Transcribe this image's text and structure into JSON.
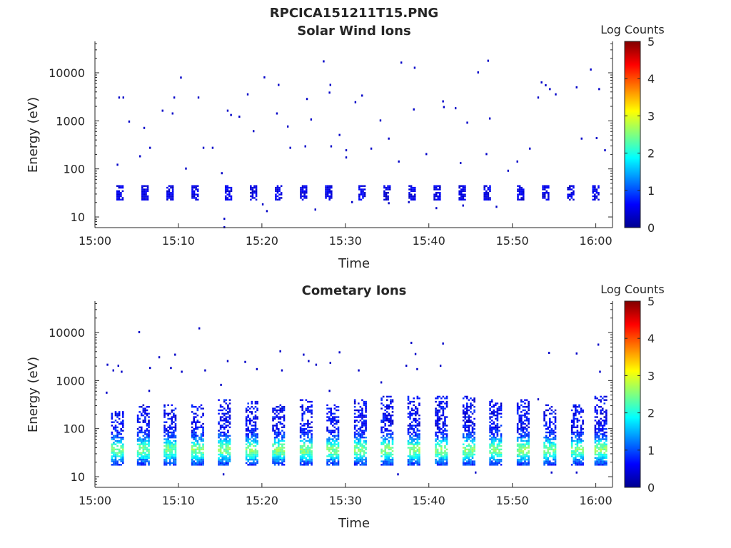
{
  "figure": {
    "title": "RPCICA151211T15.PNG"
  },
  "colorbar": {
    "label": "Log Counts",
    "min": 0,
    "max": 5,
    "ticks": [
      "0",
      "1",
      "2",
      "3",
      "4",
      "5"
    ],
    "colormap": "jet"
  },
  "chart_data": [
    {
      "type": "heatmap",
      "title": "Solar Wind Ions",
      "xlabel": "Time",
      "ylabel": "Energy (eV)",
      "xlim": [
        "15:00",
        "16:02"
      ],
      "ylim": [
        6,
        45000
      ],
      "yscale": "log",
      "xticks": [
        "15:00",
        "15:10",
        "15:20",
        "15:30",
        "15:40",
        "15:50",
        "16:00"
      ],
      "yticks": [
        "10",
        "100",
        "1000",
        "10000"
      ],
      "grid": false,
      "colorbar_label": "Log Counts",
      "bursts": [
        {
          "t": "15:03",
          "emin": 22,
          "emax": 45,
          "level": 0.3
        },
        {
          "t": "15:06",
          "emin": 22,
          "emax": 45,
          "level": 0.3
        },
        {
          "t": "15:09",
          "emin": 22,
          "emax": 45,
          "level": 0.3
        },
        {
          "t": "15:12",
          "emin": 22,
          "emax": 45,
          "level": 0.3
        },
        {
          "t": "15:16",
          "emin": 22,
          "emax": 45,
          "level": 0.3
        },
        {
          "t": "15:19",
          "emin": 22,
          "emax": 45,
          "level": 0.3
        },
        {
          "t": "15:22",
          "emin": 22,
          "emax": 45,
          "level": 0.3
        },
        {
          "t": "15:25",
          "emin": 22,
          "emax": 45,
          "level": 0.3
        },
        {
          "t": "15:28",
          "emin": 22,
          "emax": 45,
          "level": 0.3
        },
        {
          "t": "15:32",
          "emin": 22,
          "emax": 45,
          "level": 0.3
        },
        {
          "t": "15:35",
          "emin": 22,
          "emax": 45,
          "level": 0.3
        },
        {
          "t": "15:38",
          "emin": 22,
          "emax": 45,
          "level": 0.3
        },
        {
          "t": "15:41",
          "emin": 22,
          "emax": 45,
          "level": 0.3
        },
        {
          "t": "15:44",
          "emin": 22,
          "emax": 45,
          "level": 0.3
        },
        {
          "t": "15:47",
          "emin": 22,
          "emax": 45,
          "level": 0.3
        },
        {
          "t": "15:51",
          "emin": 22,
          "emax": 45,
          "level": 0.3
        },
        {
          "t": "15:54",
          "emin": 22,
          "emax": 45,
          "level": 0.3
        },
        {
          "t": "15:57",
          "emin": 22,
          "emax": 45,
          "level": 0.3
        },
        {
          "t": "16:00",
          "emin": 22,
          "emax": 45,
          "level": 0.3
        }
      ],
      "points": [
        {
          "t": "15:02.8",
          "e": 3000
        },
        {
          "t": "15:03.3",
          "e": 3000
        },
        {
          "t": "15:04.0",
          "e": 950
        },
        {
          "t": "15:05.8",
          "e": 700
        },
        {
          "t": "15:06.5",
          "e": 270
        },
        {
          "t": "15:08.0",
          "e": 1600
        },
        {
          "t": "15:09.2",
          "e": 1400
        },
        {
          "t": "15:09.4",
          "e": 3000
        },
        {
          "t": "15:10.2",
          "e": 7800
        },
        {
          "t": "15:10.8",
          "e": 100
        },
        {
          "t": "15:12.3",
          "e": 3000
        },
        {
          "t": "15:12.9",
          "e": 270
        },
        {
          "t": "15:15.8",
          "e": 1600
        },
        {
          "t": "15:16.2",
          "e": 1300
        },
        {
          "t": "15:17.2",
          "e": 1200
        },
        {
          "t": "15:18.2",
          "e": 3500
        },
        {
          "t": "15:18.9",
          "e": 600
        },
        {
          "t": "15:20.2",
          "e": 7900
        },
        {
          "t": "15:21.9",
          "e": 5500
        },
        {
          "t": "15:21.7",
          "e": 1400
        },
        {
          "t": "15:23.0",
          "e": 750
        },
        {
          "t": "15:23.3",
          "e": 270
        },
        {
          "t": "15:25.1",
          "e": 290
        },
        {
          "t": "15:25.3",
          "e": 2800
        },
        {
          "t": "15:25.8",
          "e": 1050
        },
        {
          "t": "15:27.3",
          "e": 17000
        },
        {
          "t": "15:28.0",
          "e": 3800
        },
        {
          "t": "15:28.1",
          "e": 5500
        },
        {
          "t": "15:28.2",
          "e": 290
        },
        {
          "t": "15:29.2",
          "e": 500
        },
        {
          "t": "15:31.1",
          "e": 2400
        },
        {
          "t": "15:31.9",
          "e": 3300
        },
        {
          "t": "15:34.1",
          "e": 1000
        },
        {
          "t": "15:35.1",
          "e": 420
        },
        {
          "t": "15:36.6",
          "e": 16000
        },
        {
          "t": "15:38.2",
          "e": 12500
        },
        {
          "t": "15:38.1",
          "e": 1700
        },
        {
          "t": "15:41.6",
          "e": 2500
        },
        {
          "t": "15:41.7",
          "e": 1900
        },
        {
          "t": "15:43.1",
          "e": 1800
        },
        {
          "t": "15:44.5",
          "e": 900
        },
        {
          "t": "15:45.8",
          "e": 10000
        },
        {
          "t": "15:47.0",
          "e": 17500
        },
        {
          "t": "15:47.2",
          "e": 1100
        },
        {
          "t": "15:49.4",
          "e": 90
        },
        {
          "t": "15:53.0",
          "e": 3000
        },
        {
          "t": "15:53.4",
          "e": 6200
        },
        {
          "t": "15:53.9",
          "e": 5400
        },
        {
          "t": "15:54.4",
          "e": 4500
        },
        {
          "t": "15:55.1",
          "e": 3500
        },
        {
          "t": "15:57.6",
          "e": 4900
        },
        {
          "t": "15:59.3",
          "e": 11500
        },
        {
          "t": "16:00.3",
          "e": 4500
        },
        {
          "t": "15:58.2",
          "e": 420
        },
        {
          "t": "16:00.0",
          "e": 430
        },
        {
          "t": "16:01.0",
          "e": 240
        },
        {
          "t": "15:02.6",
          "e": 120
        },
        {
          "t": "15:05.3",
          "e": 180
        },
        {
          "t": "15:14.0",
          "e": 270
        },
        {
          "t": "15:15.1",
          "e": 80
        },
        {
          "t": "15:30.0",
          "e": 170
        },
        {
          "t": "15:30.0",
          "e": 240
        },
        {
          "t": "15:33.0",
          "e": 260
        },
        {
          "t": "15:36.3",
          "e": 140
        },
        {
          "t": "15:39.6",
          "e": 200
        },
        {
          "t": "15:43.7",
          "e": 130
        },
        {
          "t": "15:46.8",
          "e": 200
        },
        {
          "t": "15:50.5",
          "e": 140
        },
        {
          "t": "15:52.0",
          "e": 260
        },
        {
          "t": "15:15.4",
          "e": 6
        },
        {
          "t": "15:15.4",
          "e": 9
        },
        {
          "t": "15:20.0",
          "e": 18
        },
        {
          "t": "15:20.5",
          "e": 13
        },
        {
          "t": "15:26.3",
          "e": 14
        },
        {
          "t": "15:30.7",
          "e": 20
        },
        {
          "t": "15:35.1",
          "e": 19
        },
        {
          "t": "15:37.5",
          "e": 20
        },
        {
          "t": "15:40.8",
          "e": 15
        },
        {
          "t": "15:44.0",
          "e": 17
        },
        {
          "t": "15:48.0",
          "e": 16
        }
      ]
    },
    {
      "type": "heatmap",
      "title": "Cometary Ions",
      "xlabel": "Time",
      "ylabel": "Energy (eV)",
      "xlim": [
        "15:00",
        "16:02"
      ],
      "ylim": [
        6,
        45000
      ],
      "yscale": "log",
      "xticks": [
        "15:00",
        "15:10",
        "15:20",
        "15:30",
        "15:40",
        "15:50",
        "16:00"
      ],
      "yticks": [
        "10",
        "100",
        "1000",
        "10000"
      ],
      "grid": false,
      "colorbar_label": "Log Counts",
      "bursts": [
        {
          "t": "15:02.7",
          "emin": 17,
          "emax": 220,
          "peak_e": 35,
          "peak": 1.8
        },
        {
          "t": "15:05.8",
          "emin": 17,
          "emax": 300,
          "peak_e": 35,
          "peak": 1.8
        },
        {
          "t": "15:09.0",
          "emin": 17,
          "emax": 300,
          "peak_e": 35,
          "peak": 1.8
        },
        {
          "t": "15:12.3",
          "emin": 17,
          "emax": 300,
          "peak_e": 35,
          "peak": 1.9
        },
        {
          "t": "15:15.5",
          "emin": 17,
          "emax": 400,
          "peak_e": 35,
          "peak": 1.9
        },
        {
          "t": "15:18.8",
          "emin": 17,
          "emax": 350,
          "peak_e": 35,
          "peak": 1.9
        },
        {
          "t": "15:22.0",
          "emin": 17,
          "emax": 320,
          "peak_e": 35,
          "peak": 1.9
        },
        {
          "t": "15:25.3",
          "emin": 17,
          "emax": 400,
          "peak_e": 35,
          "peak": 1.9
        },
        {
          "t": "15:28.5",
          "emin": 17,
          "emax": 300,
          "peak_e": 35,
          "peak": 1.8
        },
        {
          "t": "15:31.8",
          "emin": 17,
          "emax": 400,
          "peak_e": 35,
          "peak": 1.9
        },
        {
          "t": "15:35.0",
          "emin": 17,
          "emax": 450,
          "peak_e": 35,
          "peak": 1.9
        },
        {
          "t": "15:38.2",
          "emin": 17,
          "emax": 450,
          "peak_e": 35,
          "peak": 1.9
        },
        {
          "t": "15:41.5",
          "emin": 17,
          "emax": 450,
          "peak_e": 35,
          "peak": 1.9
        },
        {
          "t": "15:44.8",
          "emin": 17,
          "emax": 450,
          "peak_e": 35,
          "peak": 1.9
        },
        {
          "t": "15:48.0",
          "emin": 17,
          "emax": 400,
          "peak_e": 35,
          "peak": 1.9
        },
        {
          "t": "15:51.3",
          "emin": 17,
          "emax": 400,
          "peak_e": 35,
          "peak": 1.9
        },
        {
          "t": "15:54.5",
          "emin": 17,
          "emax": 300,
          "peak_e": 35,
          "peak": 1.8
        },
        {
          "t": "15:57.8",
          "emin": 17,
          "emax": 300,
          "peak_e": 35,
          "peak": 1.8
        },
        {
          "t": "16:00.6",
          "emin": 17,
          "emax": 450,
          "peak_e": 35,
          "peak": 1.9
        }
      ],
      "points": [
        {
          "t": "15:01.4",
          "e": 2100
        },
        {
          "t": "15:02.1",
          "e": 1600
        },
        {
          "t": "15:02.7",
          "e": 2000
        },
        {
          "t": "15:03.1",
          "e": 1500
        },
        {
          "t": "15:05.2",
          "e": 10000
        },
        {
          "t": "15:06.5",
          "e": 1800
        },
        {
          "t": "15:07.6",
          "e": 3000
        },
        {
          "t": "15:09.0",
          "e": 1800
        },
        {
          "t": "15:09.5",
          "e": 3400
        },
        {
          "t": "15:10.3",
          "e": 1500
        },
        {
          "t": "15:12.4",
          "e": 12000
        },
        {
          "t": "15:13.1",
          "e": 1600
        },
        {
          "t": "15:15.8",
          "e": 2500
        },
        {
          "t": "15:17.9",
          "e": 2400
        },
        {
          "t": "15:19.3",
          "e": 1700
        },
        {
          "t": "15:22.1",
          "e": 4000
        },
        {
          "t": "15:22.3",
          "e": 1600
        },
        {
          "t": "15:24.9",
          "e": 3400
        },
        {
          "t": "15:25.5",
          "e": 2500
        },
        {
          "t": "15:26.4",
          "e": 2100
        },
        {
          "t": "15:28.1",
          "e": 2300
        },
        {
          "t": "15:29.2",
          "e": 3800
        },
        {
          "t": "15:31.5",
          "e": 1600
        },
        {
          "t": "15:34.2",
          "e": 900
        },
        {
          "t": "15:37.8",
          "e": 6000
        },
        {
          "t": "15:38.3",
          "e": 3500
        },
        {
          "t": "15:37.2",
          "e": 2000
        },
        {
          "t": "15:38.5",
          "e": 1700
        },
        {
          "t": "15:41.3",
          "e": 2000
        },
        {
          "t": "15:41.6",
          "e": 5800
        },
        {
          "t": "15:54.3",
          "e": 3700
        },
        {
          "t": "15:57.6",
          "e": 3600
        },
        {
          "t": "16:00.2",
          "e": 5500
        },
        {
          "t": "16:00.4",
          "e": 1500
        },
        {
          "t": "15:01.3",
          "e": 550
        },
        {
          "t": "15:06.4",
          "e": 600
        },
        {
          "t": "15:15.0",
          "e": 800
        },
        {
          "t": "15:28.0",
          "e": 600
        },
        {
          "t": "15:53.0",
          "e": 400
        },
        {
          "t": "15:15.3",
          "e": 11
        },
        {
          "t": "15:36.2",
          "e": 11
        },
        {
          "t": "15:45.5",
          "e": 12
        },
        {
          "t": "15:54.6",
          "e": 12
        },
        {
          "t": "15:57.6",
          "e": 12
        }
      ]
    }
  ]
}
